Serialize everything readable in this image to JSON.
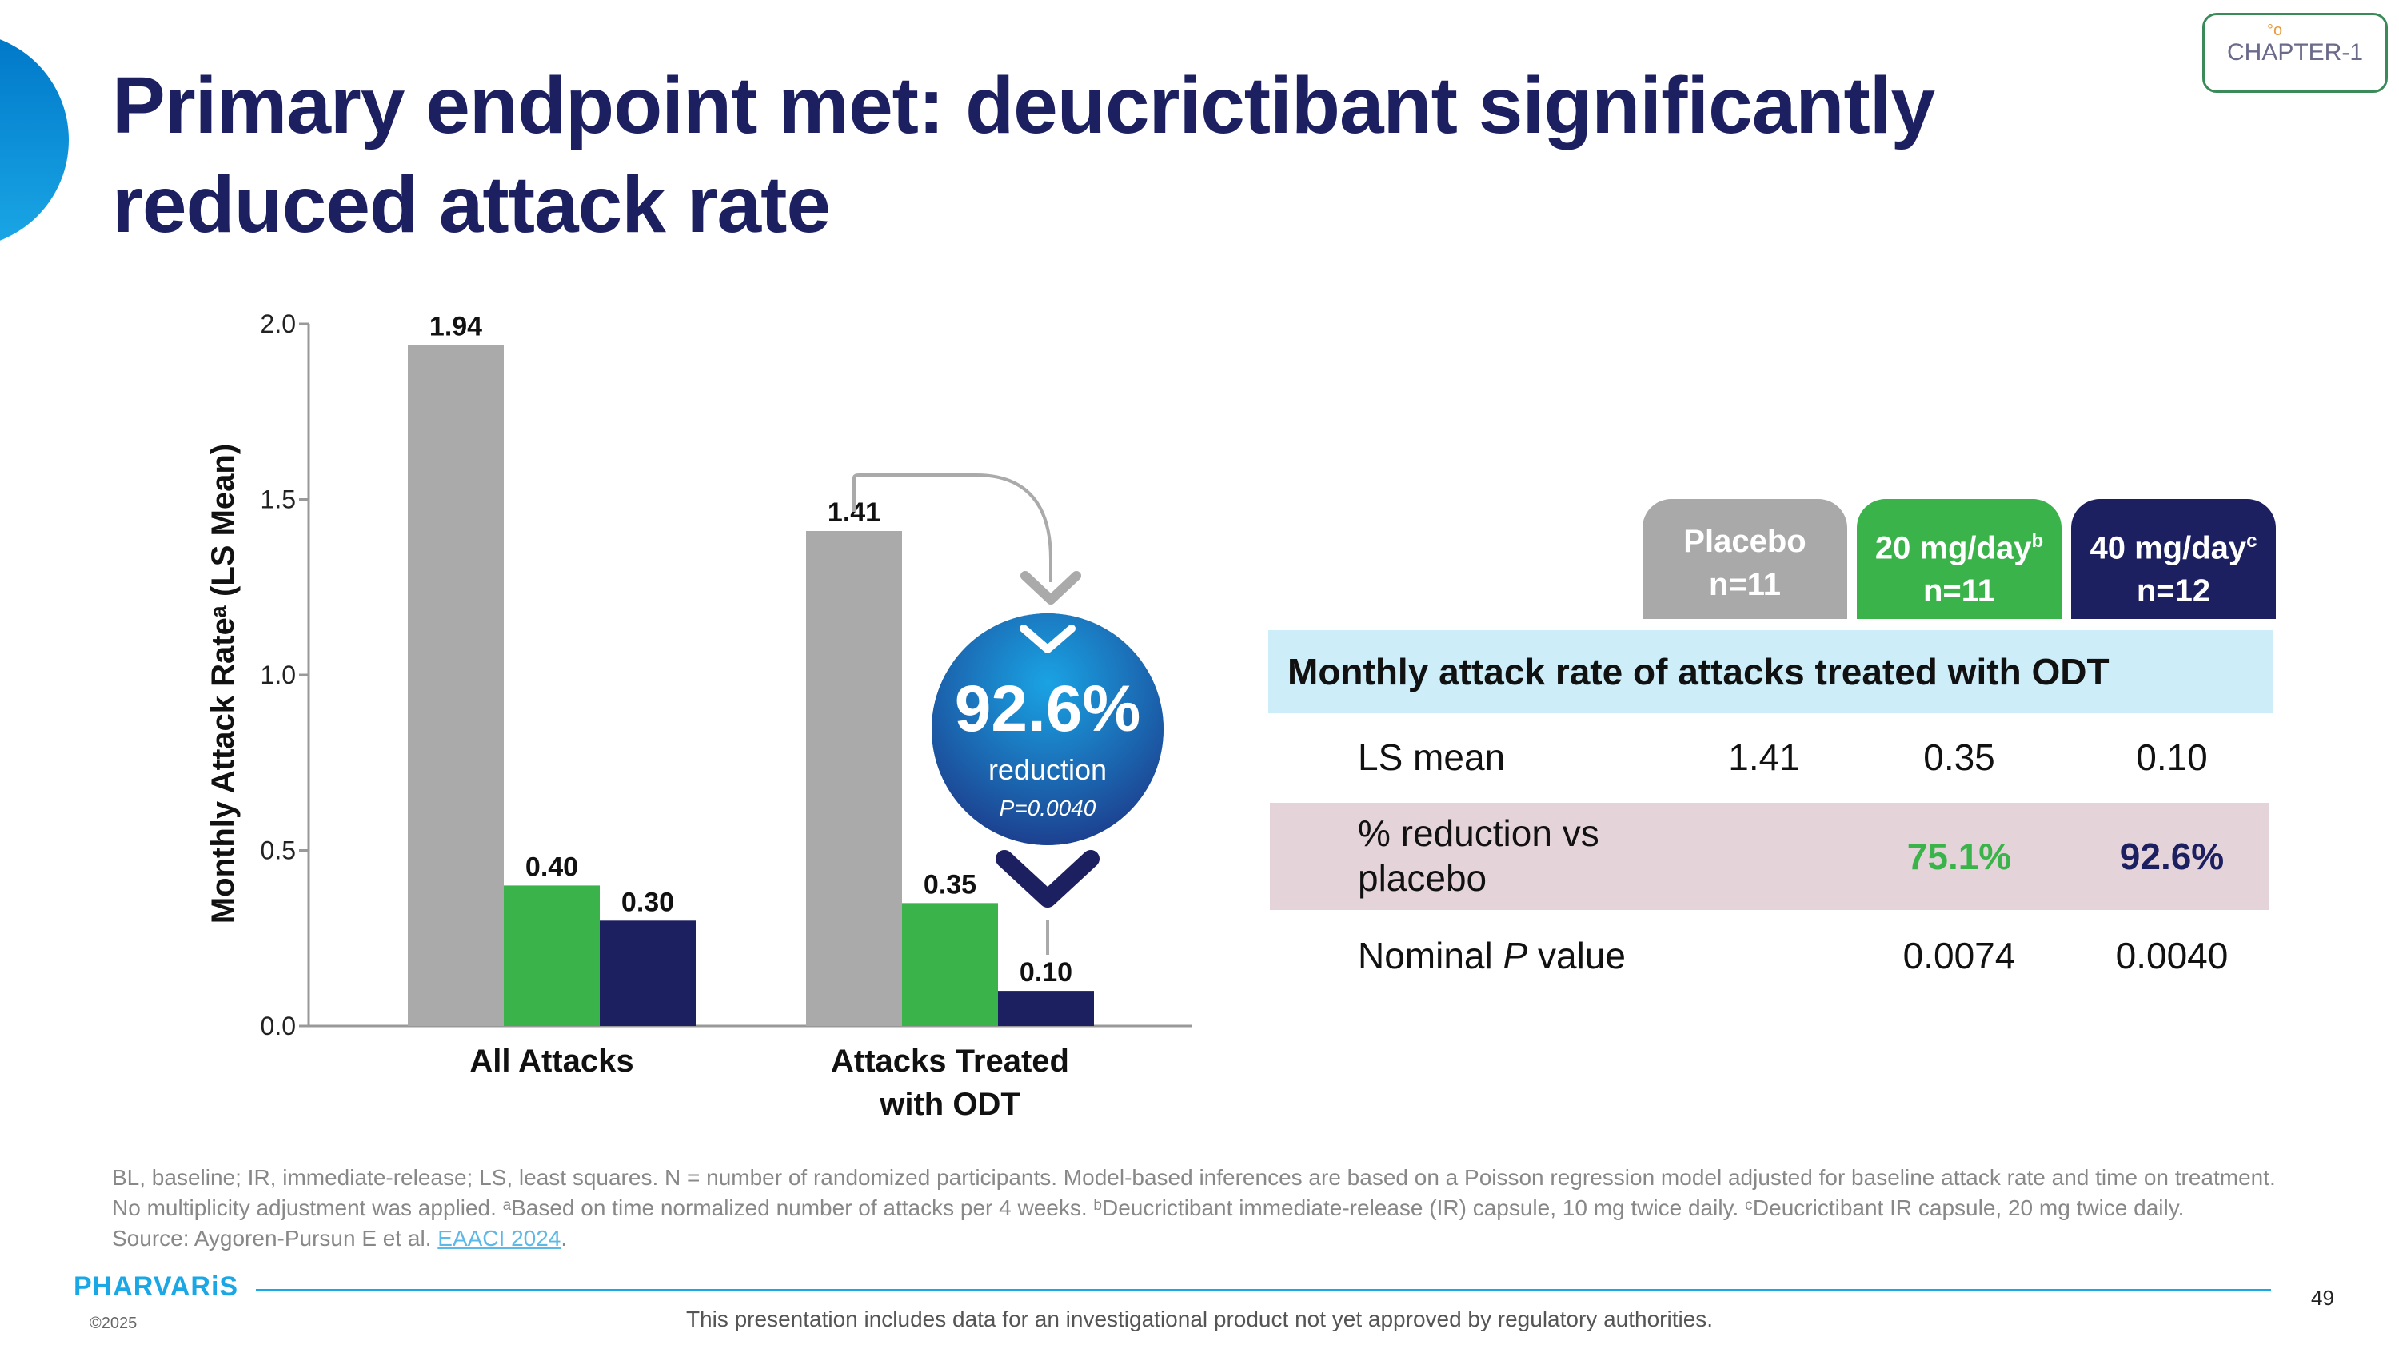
{
  "title": "Primary endpoint met: deucrictibant significantly reduced attack rate",
  "logo": {
    "text": "CHAPTER-1"
  },
  "colors": {
    "placebo": "#aaaaaa",
    "dose20": "#3ab44a",
    "dose40": "#1c2060",
    "navy": "#1c2060",
    "accent": "#1aa7e6"
  },
  "chart_data": {
    "type": "bar",
    "ylabel": "Monthly Attack Rateᵃ (LS Mean)",
    "ylim": [
      0,
      2.0
    ],
    "yticks": [
      "0.0",
      "0.5",
      "1.0",
      "1.5",
      "2.0"
    ],
    "categories": [
      "All Attacks",
      "Attacks Treated with ODT"
    ],
    "category_lines": [
      [
        "All Attacks"
      ],
      [
        "Attacks Treated",
        "with ODT"
      ]
    ],
    "series": [
      {
        "key": "placebo",
        "values": [
          1.94,
          1.41
        ],
        "labels": [
          "1.94",
          "1.41"
        ]
      },
      {
        "key": "dose20",
        "values": [
          0.4,
          0.35
        ],
        "labels": [
          "0.40",
          "0.35"
        ]
      },
      {
        "key": "dose40",
        "values": [
          0.3,
          0.1
        ],
        "labels": [
          "0.30",
          "0.10"
        ]
      }
    ],
    "annotation": {
      "value": "92.6%",
      "text": "reduction",
      "p": "P=0.0040"
    }
  },
  "table": {
    "headers": [
      {
        "name": "Placebo",
        "n": "n=11"
      },
      {
        "name": "20 mg/day",
        "sup": "b",
        "n": "n=11"
      },
      {
        "name": "40 mg/day",
        "sup": "c",
        "n": "n=12"
      }
    ],
    "section_title": "Monthly attack rate of attacks treated with ODT",
    "rows": {
      "ls_mean": {
        "label": "LS mean",
        "values": [
          "1.41",
          "0.35",
          "0.10"
        ]
      },
      "reduction": {
        "label_line1": "% reduction vs",
        "label_line2": "placebo",
        "values": [
          "",
          "75.1%",
          "92.6%"
        ]
      },
      "p_value": {
        "label_pre": "Nominal ",
        "label_p": "P",
        "label_post": " value",
        "values": [
          "",
          "0.0074",
          "0.0040"
        ]
      }
    }
  },
  "footnote": {
    "line1": "BL, baseline; IR, immediate-release; LS, least squares. N = number of randomized participants. Model-based inferences are based on a Poisson regression model adjusted for baseline attack rate and time on treatment.",
    "line2": "No multiplicity adjustment was applied. ᵃBased on time normalized number of attacks per 4 weeks. ᵇDeucrictibant immediate-release (IR) capsule, 10 mg twice daily. ᶜDeucrictibant IR capsule, 20 mg twice daily.",
    "source_pre": "Source: Aygoren-Pursun E et al. ",
    "source_link": "EAACI 2024",
    "source_post": "."
  },
  "footer": {
    "brand": "PHARVARiS",
    "copyright": "©2025",
    "disclaimer": "This presentation includes data for an investigational product not yet approved by regulatory authorities.",
    "page": "49"
  }
}
